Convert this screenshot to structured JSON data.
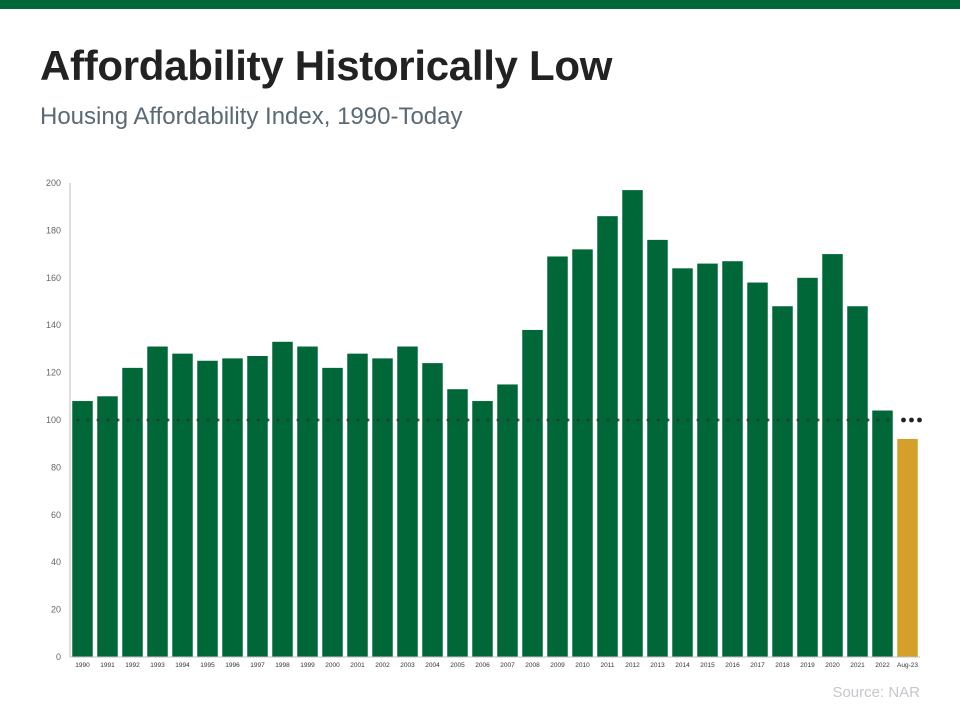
{
  "header": {
    "title": "Affordability Historically Low",
    "subtitle": "Housing Affordability Index, 1990-Today"
  },
  "footer": {
    "source": "Source: NAR"
  },
  "colors": {
    "brand_bar": "#006838",
    "bar": "#006838",
    "highlight_bar": "#d5a02a",
    "reference_line": "#333333"
  },
  "chart_data": {
    "type": "bar",
    "categories": [
      "1990",
      "1991",
      "1992",
      "1993",
      "1994",
      "1995",
      "1996",
      "1997",
      "1998",
      "1999",
      "2000",
      "2001",
      "2002",
      "2003",
      "2004",
      "2005",
      "2006",
      "2007",
      "2008",
      "2009",
      "2010",
      "2011",
      "2012",
      "2013",
      "2014",
      "2015",
      "2016",
      "2017",
      "2018",
      "2019",
      "2020",
      "2021",
      "2022",
      "Aug-23"
    ],
    "values": [
      108,
      110,
      122,
      131,
      128,
      125,
      126,
      127,
      133,
      131,
      122,
      128,
      126,
      131,
      124,
      113,
      108,
      115,
      138,
      169,
      172,
      186,
      197,
      176,
      164,
      166,
      167,
      158,
      148,
      160,
      170,
      148,
      104,
      92
    ],
    "highlight_index": 33,
    "ylim": [
      0,
      200
    ],
    "yticks": [
      0,
      20,
      40,
      60,
      80,
      100,
      120,
      140,
      160,
      180,
      200
    ],
    "reference_line": 100,
    "grid": false
  }
}
